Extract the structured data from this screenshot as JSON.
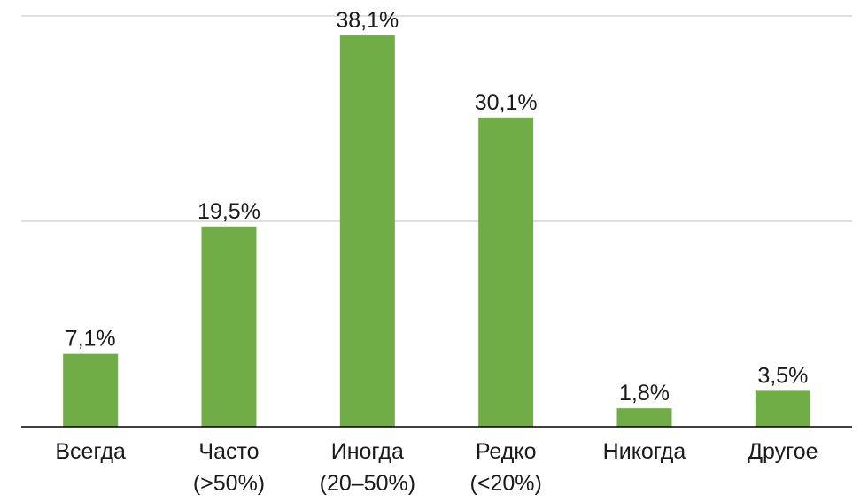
{
  "chart_data": {
    "type": "bar",
    "categories": [
      [
        "Всегда"
      ],
      [
        "Часто",
        "(>50%)"
      ],
      [
        "Иногда",
        "(20–50%)"
      ],
      [
        "Редко",
        "(<20%)"
      ],
      [
        "Никогда"
      ],
      [
        "Другое"
      ]
    ],
    "values": [
      7.1,
      19.5,
      38.1,
      30.1,
      1.8,
      3.5
    ],
    "data_labels": [
      "7,1%",
      "19,5%",
      "38,1%",
      "30,1%",
      "1,8%",
      "3,5%"
    ],
    "unit": "%",
    "ylim": [
      0,
      40
    ],
    "gridlines": [
      20,
      40
    ],
    "grid": true,
    "legend": "none",
    "bar_color": "#70ad47",
    "title": "",
    "xlabel": "",
    "ylabel": ""
  }
}
